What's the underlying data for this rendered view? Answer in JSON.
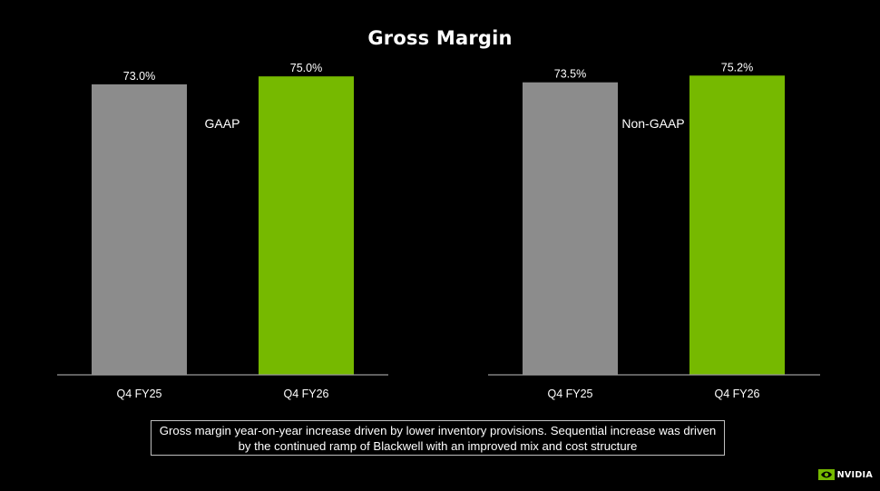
{
  "title": "Gross Margin",
  "colors": {
    "background": "#000000",
    "prior_bar": "#8c8c8c",
    "current_bar": "#76b900",
    "axis_line": "#9a9a9a",
    "text": "#ffffff"
  },
  "chart_data": [
    {
      "type": "bar",
      "title": "GAAP",
      "categories": [
        "Q4 FY25",
        "Q4 FY26"
      ],
      "values": [
        73.0,
        75.0
      ],
      "data_labels": [
        "73.0%",
        "75.0%"
      ],
      "bar_colors": [
        "#8c8c8c",
        "#76b900"
      ],
      "xlabel": "",
      "ylabel": "",
      "ylim": [
        0,
        78.0
      ],
      "grid": false,
      "legend": "none"
    },
    {
      "type": "bar",
      "title": "Non-GAAP",
      "categories": [
        "Q4 FY25",
        "Q4 FY26"
      ],
      "values": [
        73.5,
        75.2
      ],
      "data_labels": [
        "73.5%",
        "75.2%"
      ],
      "bar_colors": [
        "#8c8c8c",
        "#76b900"
      ],
      "xlabel": "",
      "ylabel": "",
      "ylim": [
        0,
        78.0
      ],
      "grid": false,
      "legend": "none"
    }
  ],
  "note": "Gross margin year-on-year increase driven by lower inventory provisions. Sequential increase was driven by the continued ramp of Blackwell with an improved mix and cost structure",
  "logo": {
    "text": "NVIDIA",
    "icon": "nvidia-eye-icon"
  }
}
